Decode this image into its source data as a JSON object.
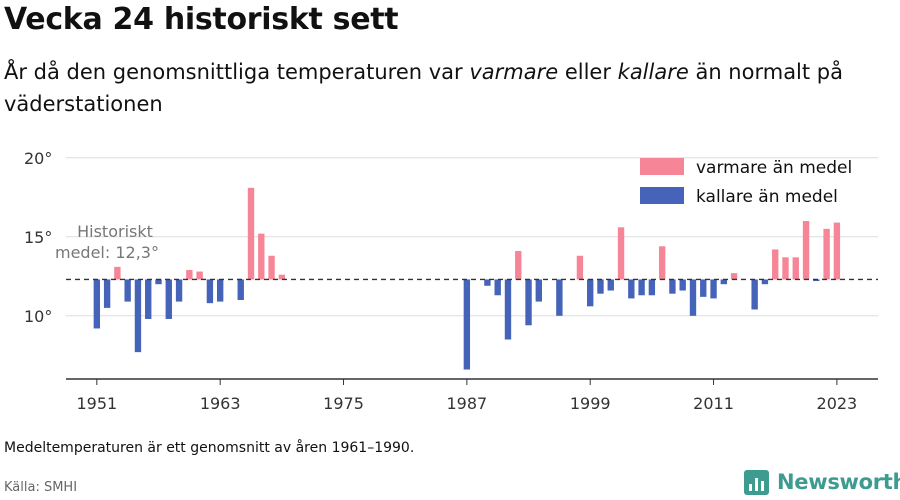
{
  "header": {
    "title": "Vecka 24 historiskt sett",
    "subtitle_part1": "År då den genomsnittliga temperaturen var ",
    "subtitle_warm": "varmare",
    "subtitle_part2": " eller ",
    "subtitle_cold": "kallare",
    "subtitle_part3": " än normalt på väderstationen"
  },
  "chart_data": {
    "type": "bar",
    "baseline": 12.3,
    "baseline_label_line1": "Historiskt",
    "baseline_label_line2": "medel: 12,3°",
    "ylim": [
      6,
      21
    ],
    "xlim": [
      1948,
      2027
    ],
    "yticks": [
      10,
      15,
      20
    ],
    "ytick_labels": [
      "10°",
      "15°",
      "20°"
    ],
    "xticks": [
      1951,
      1963,
      1975,
      1987,
      1999,
      2011,
      2023
    ],
    "xtick_labels": [
      "1951",
      "1963",
      "1975",
      "1987",
      "1999",
      "2011",
      "2023"
    ],
    "legend": [
      {
        "label": "varmare än medel",
        "color": "#f58597"
      },
      {
        "label": "kallare än medel",
        "color": "#4563b8"
      }
    ],
    "colors": {
      "warm": "#f58597",
      "cold": "#4563b8",
      "grid": "#dddddd",
      "axis": "#333333"
    },
    "years": [
      1951,
      1952,
      1953,
      1954,
      1955,
      1956,
      1957,
      1958,
      1959,
      1960,
      1961,
      1962,
      1963,
      1965,
      1966,
      1967,
      1968,
      1969,
      1987,
      1989,
      1990,
      1991,
      1992,
      1993,
      1994,
      1996,
      1998,
      1999,
      2000,
      2001,
      2002,
      2003,
      2004,
      2005,
      2006,
      2007,
      2008,
      2009,
      2010,
      2011,
      2012,
      2013,
      2015,
      2016,
      2017,
      2018,
      2019,
      2020,
      2021,
      2022,
      2023
    ],
    "values": [
      9.2,
      10.5,
      13.1,
      10.9,
      7.7,
      9.8,
      12.0,
      9.8,
      10.9,
      12.9,
      12.8,
      10.8,
      10.9,
      11.0,
      18.1,
      15.2,
      13.8,
      12.6,
      6.6,
      11.9,
      11.3,
      8.5,
      14.1,
      9.4,
      10.9,
      10.0,
      13.8,
      10.6,
      11.4,
      11.6,
      15.6,
      11.1,
      11.3,
      11.3,
      14.4,
      11.4,
      11.6,
      10.0,
      11.2,
      11.1,
      12.0,
      12.7,
      10.4,
      12.0,
      14.2,
      13.7,
      13.7,
      16.0,
      12.2,
      15.5,
      15.9
    ]
  },
  "footer": {
    "note": "Medeltemperaturen är ett genomsnitt av åren 1961–1990.",
    "source": "Källa: SMHI",
    "brand": "Newsworthy"
  }
}
